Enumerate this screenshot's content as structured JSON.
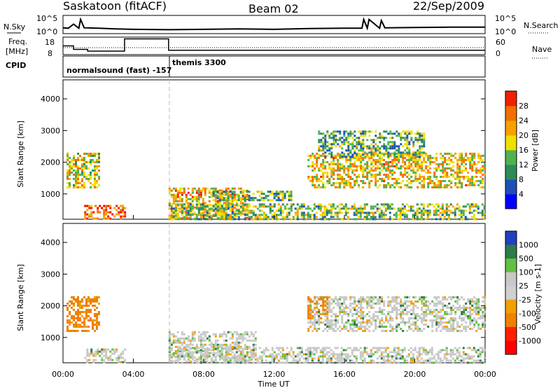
{
  "header": {
    "station": "Saskatoon (fitACF)",
    "beam": "Beam 02",
    "date": "22/Sep/2009"
  },
  "panels": {
    "nsky_label": "N.Sky",
    "nsearch_label": "N.Search",
    "noise_ticks_left": [
      "10^5",
      "10^0"
    ],
    "noise_ticks_right": [
      "10^5",
      "10^0"
    ],
    "freq_label": [
      "Freq.",
      "[MHz]"
    ],
    "freq_ticks": [
      "18",
      "8"
    ],
    "nave_label": "Nave",
    "nave_ticks": [
      "60",
      "0"
    ],
    "cpid_label": "CPID",
    "cpid_names": [
      "normalsound (fast) -157",
      "themis 3300"
    ]
  },
  "colors": {
    "power_scale": [
      "#0000ff",
      "#1f4fb4",
      "#2e8b57",
      "#4fb24f",
      "#f0e000",
      "#f6a000",
      "#f07000",
      "#f02000",
      "#ff0000"
    ],
    "velocity_scale": [
      "#2040c0",
      "#2e7a4a",
      "#60c040",
      "#c8c8c8",
      "#d0d0d0",
      "#f0a000",
      "#f08000",
      "#ff2000",
      "#ff0000"
    ],
    "divider": "#bbbbbb"
  },
  "chart_data": [
    {
      "type": "line",
      "name": "noise",
      "x_unit": "hours UT",
      "y_scale": "log",
      "ylim": [
        1,
        100000
      ],
      "series": [
        {
          "name": "N.Sky",
          "x": [
            0,
            0.3,
            0.6,
            0.9,
            1.0,
            1.2,
            2,
            3,
            4,
            6,
            8,
            10,
            12,
            14,
            16,
            17,
            17.1,
            17.3,
            17.4,
            18,
            18.1,
            18.3,
            20,
            22,
            24
          ],
          "y": [
            40,
            30,
            400,
            30,
            8000,
            40,
            30,
            20,
            15,
            12,
            15,
            20,
            15,
            25,
            30,
            30,
            8000,
            30,
            8000,
            30,
            4000,
            40,
            50,
            60,
            60
          ]
        }
      ]
    },
    {
      "type": "line",
      "name": "frequency",
      "x_unit": "hours UT",
      "ylim": [
        8,
        18
      ],
      "series": [
        {
          "name": "Freq.",
          "x": [
            0,
            0.6,
            0.6,
            1.4,
            1.4,
            3.5,
            3.5,
            6.0,
            6.0,
            24
          ],
          "y": [
            13,
            13,
            11,
            11,
            10,
            10,
            17,
            17,
            10.5,
            10.5
          ]
        }
      ]
    },
    {
      "type": "heatmap",
      "name": "power",
      "xlabel": "Time UT",
      "ylabel": "Slant Range [km]",
      "xticks": [
        "00:00",
        "04:00",
        "08:00",
        "12:00",
        "16:00",
        "20:00",
        "00:00"
      ],
      "xlim": [
        0,
        24
      ],
      "yticks": [
        1000,
        2000,
        3000,
        4000
      ],
      "ylim": [
        200,
        4600
      ],
      "colorbar_label": "Power [dB]",
      "colorbar_ticks": [
        4,
        8,
        12,
        16,
        20,
        24,
        28
      ],
      "clim": [
        0,
        30
      ],
      "regions": [
        {
          "x": [
            0.2,
            2.1
          ],
          "y": [
            1200,
            2300
          ],
          "value": 16
        },
        {
          "x": [
            1.2,
            3.5
          ],
          "y": [
            250,
            650
          ],
          "value": 24
        },
        {
          "x": [
            6.0,
            10.5
          ],
          "y": [
            250,
            1200
          ],
          "value": 18
        },
        {
          "x": [
            6.0,
            24
          ],
          "y": [
            200,
            700
          ],
          "value": 12
        },
        {
          "x": [
            8.5,
            13.0
          ],
          "y": [
            800,
            1100
          ],
          "value": 10
        },
        {
          "x": [
            13.9,
            24
          ],
          "y": [
            1200,
            2300
          ],
          "value": 17
        },
        {
          "x": [
            14.5,
            20.5
          ],
          "y": [
            2200,
            3000
          ],
          "value": 10
        }
      ]
    },
    {
      "type": "heatmap",
      "name": "velocity",
      "xlabel": "Time UT",
      "ylabel": "Slant Range [km]",
      "xticks": [
        "00:00",
        "04:00",
        "08:00",
        "12:00",
        "16:00",
        "20:00",
        "00:00"
      ],
      "xlim": [
        0,
        24
      ],
      "yticks": [
        1000,
        2000,
        3000,
        4000
      ],
      "ylim": [
        200,
        4600
      ],
      "colorbar_label": "Velocity [m s-1]",
      "colorbar_ticks": [
        "1000",
        "500",
        "100",
        "25",
        "-25",
        "-100",
        "-500",
        "-1000"
      ],
      "regions": [
        {
          "x": [
            0.2,
            2.1
          ],
          "y": [
            1200,
            2300
          ],
          "value": -150
        },
        {
          "x": [
            1.2,
            3.5
          ],
          "y": [
            250,
            650
          ],
          "value": 0
        },
        {
          "x": [
            6.0,
            11.0
          ],
          "y": [
            250,
            1200
          ],
          "value": 0
        },
        {
          "x": [
            6.0,
            24
          ],
          "y": [
            200,
            700
          ],
          "value": 0
        },
        {
          "x": [
            13.9,
            24
          ],
          "y": [
            1200,
            2300
          ],
          "value": 0
        },
        {
          "x": [
            13.9,
            15.0
          ],
          "y": [
            1600,
            2300
          ],
          "value": -150
        }
      ]
    }
  ]
}
